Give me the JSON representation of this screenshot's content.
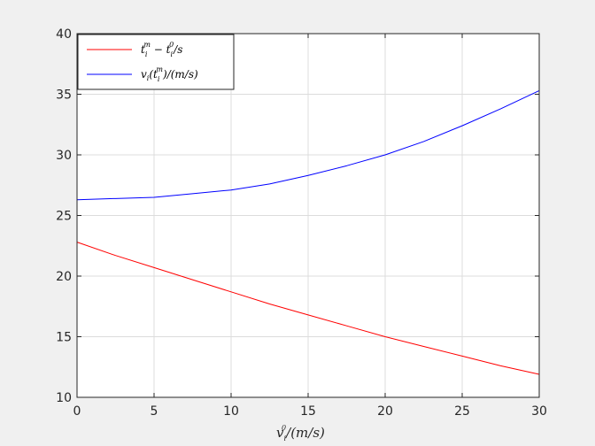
{
  "chart_data": {
    "type": "line",
    "xlabel": "v_i^0/(m/s)",
    "ylabel": "",
    "xlim": [
      0,
      30
    ],
    "ylim": [
      10,
      40
    ],
    "xticks": [
      0,
      5,
      10,
      15,
      20,
      25,
      30
    ],
    "yticks": [
      10,
      15,
      20,
      25,
      30,
      35,
      40
    ],
    "grid": true,
    "legend_position": "top-left",
    "series": [
      {
        "name": "t_i^m − t_i^0/s",
        "color": "#ff0000",
        "x": [
          0,
          2.5,
          5,
          7.5,
          10,
          12.5,
          15,
          17.5,
          20,
          22.5,
          25,
          27.5,
          30
        ],
        "y": [
          22.8,
          21.7,
          20.7,
          19.7,
          18.7,
          17.7,
          16.8,
          15.9,
          15.0,
          14.2,
          13.4,
          12.6,
          11.9
        ]
      },
      {
        "name": "v_i(t_i^m)/(m/s)",
        "color": "#0000ff",
        "x": [
          0,
          2.5,
          5,
          7.5,
          10,
          12.5,
          15,
          17.5,
          20,
          22.5,
          25,
          27.5,
          30
        ],
        "y": [
          26.3,
          26.4,
          26.5,
          26.8,
          27.1,
          27.6,
          28.3,
          29.1,
          30.0,
          31.1,
          32.4,
          33.8,
          35.3
        ]
      }
    ]
  }
}
